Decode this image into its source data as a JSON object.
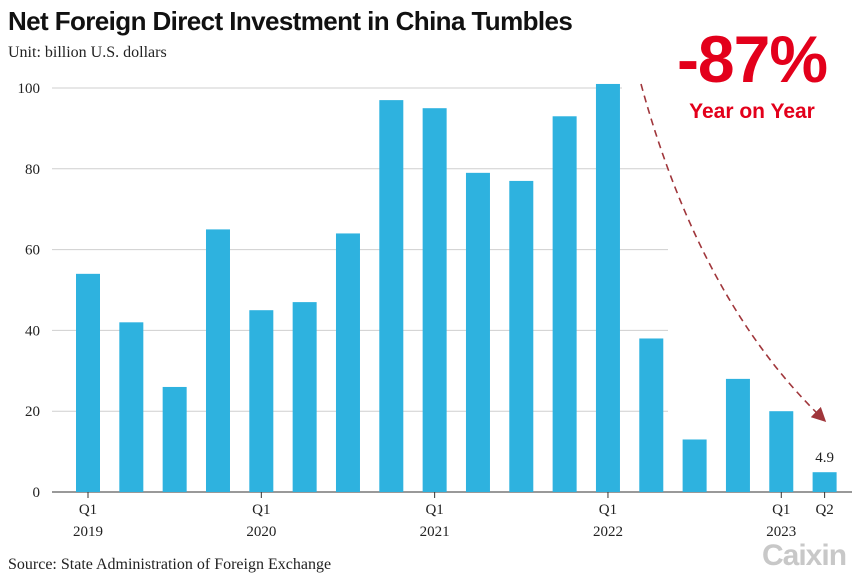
{
  "title": "Net Foreign Direct Investment in China Tumbles",
  "subtitle": "Unit: billion U.S. dollars",
  "source": "Source: State Administration of Foreign Exchange",
  "logo": "Caixin",
  "callout": {
    "value": "-87%",
    "label": "Year on Year",
    "color": "#e3001b"
  },
  "chart_data": {
    "type": "bar",
    "bar_color": "#2eb2df",
    "ylim": [
      0,
      100
    ],
    "yticks": [
      0,
      20,
      40,
      60,
      80,
      100
    ],
    "grid": true,
    "legend": "none",
    "categories": [
      "2019 Q1",
      "2019 Q2",
      "2019 Q3",
      "2019 Q4",
      "2020 Q1",
      "2020 Q2",
      "2020 Q3",
      "2020 Q4",
      "2021 Q1",
      "2021 Q2",
      "2021 Q3",
      "2021 Q4",
      "2022 Q1",
      "2022 Q2",
      "2022 Q3",
      "2022 Q4",
      "2023 Q1",
      "2023 Q2"
    ],
    "values": [
      54,
      42,
      26,
      65,
      45,
      47,
      64,
      97,
      95,
      79,
      77,
      93,
      101,
      38,
      13,
      28,
      20,
      4.9
    ],
    "x_tick_labels": [
      {
        "index": 0,
        "line1": "Q1",
        "line2": "2019"
      },
      {
        "index": 4,
        "line1": "Q1",
        "line2": "2020"
      },
      {
        "index": 8,
        "line1": "Q1",
        "line2": "2021"
      },
      {
        "index": 12,
        "line1": "Q1",
        "line2": "2022"
      },
      {
        "index": 16,
        "line1": "Q1",
        "line2": "2023"
      },
      {
        "index": 17,
        "line1": "Q2",
        "line2": ""
      }
    ],
    "data_labels": [
      {
        "index": 17,
        "text": "4.9"
      }
    ]
  }
}
